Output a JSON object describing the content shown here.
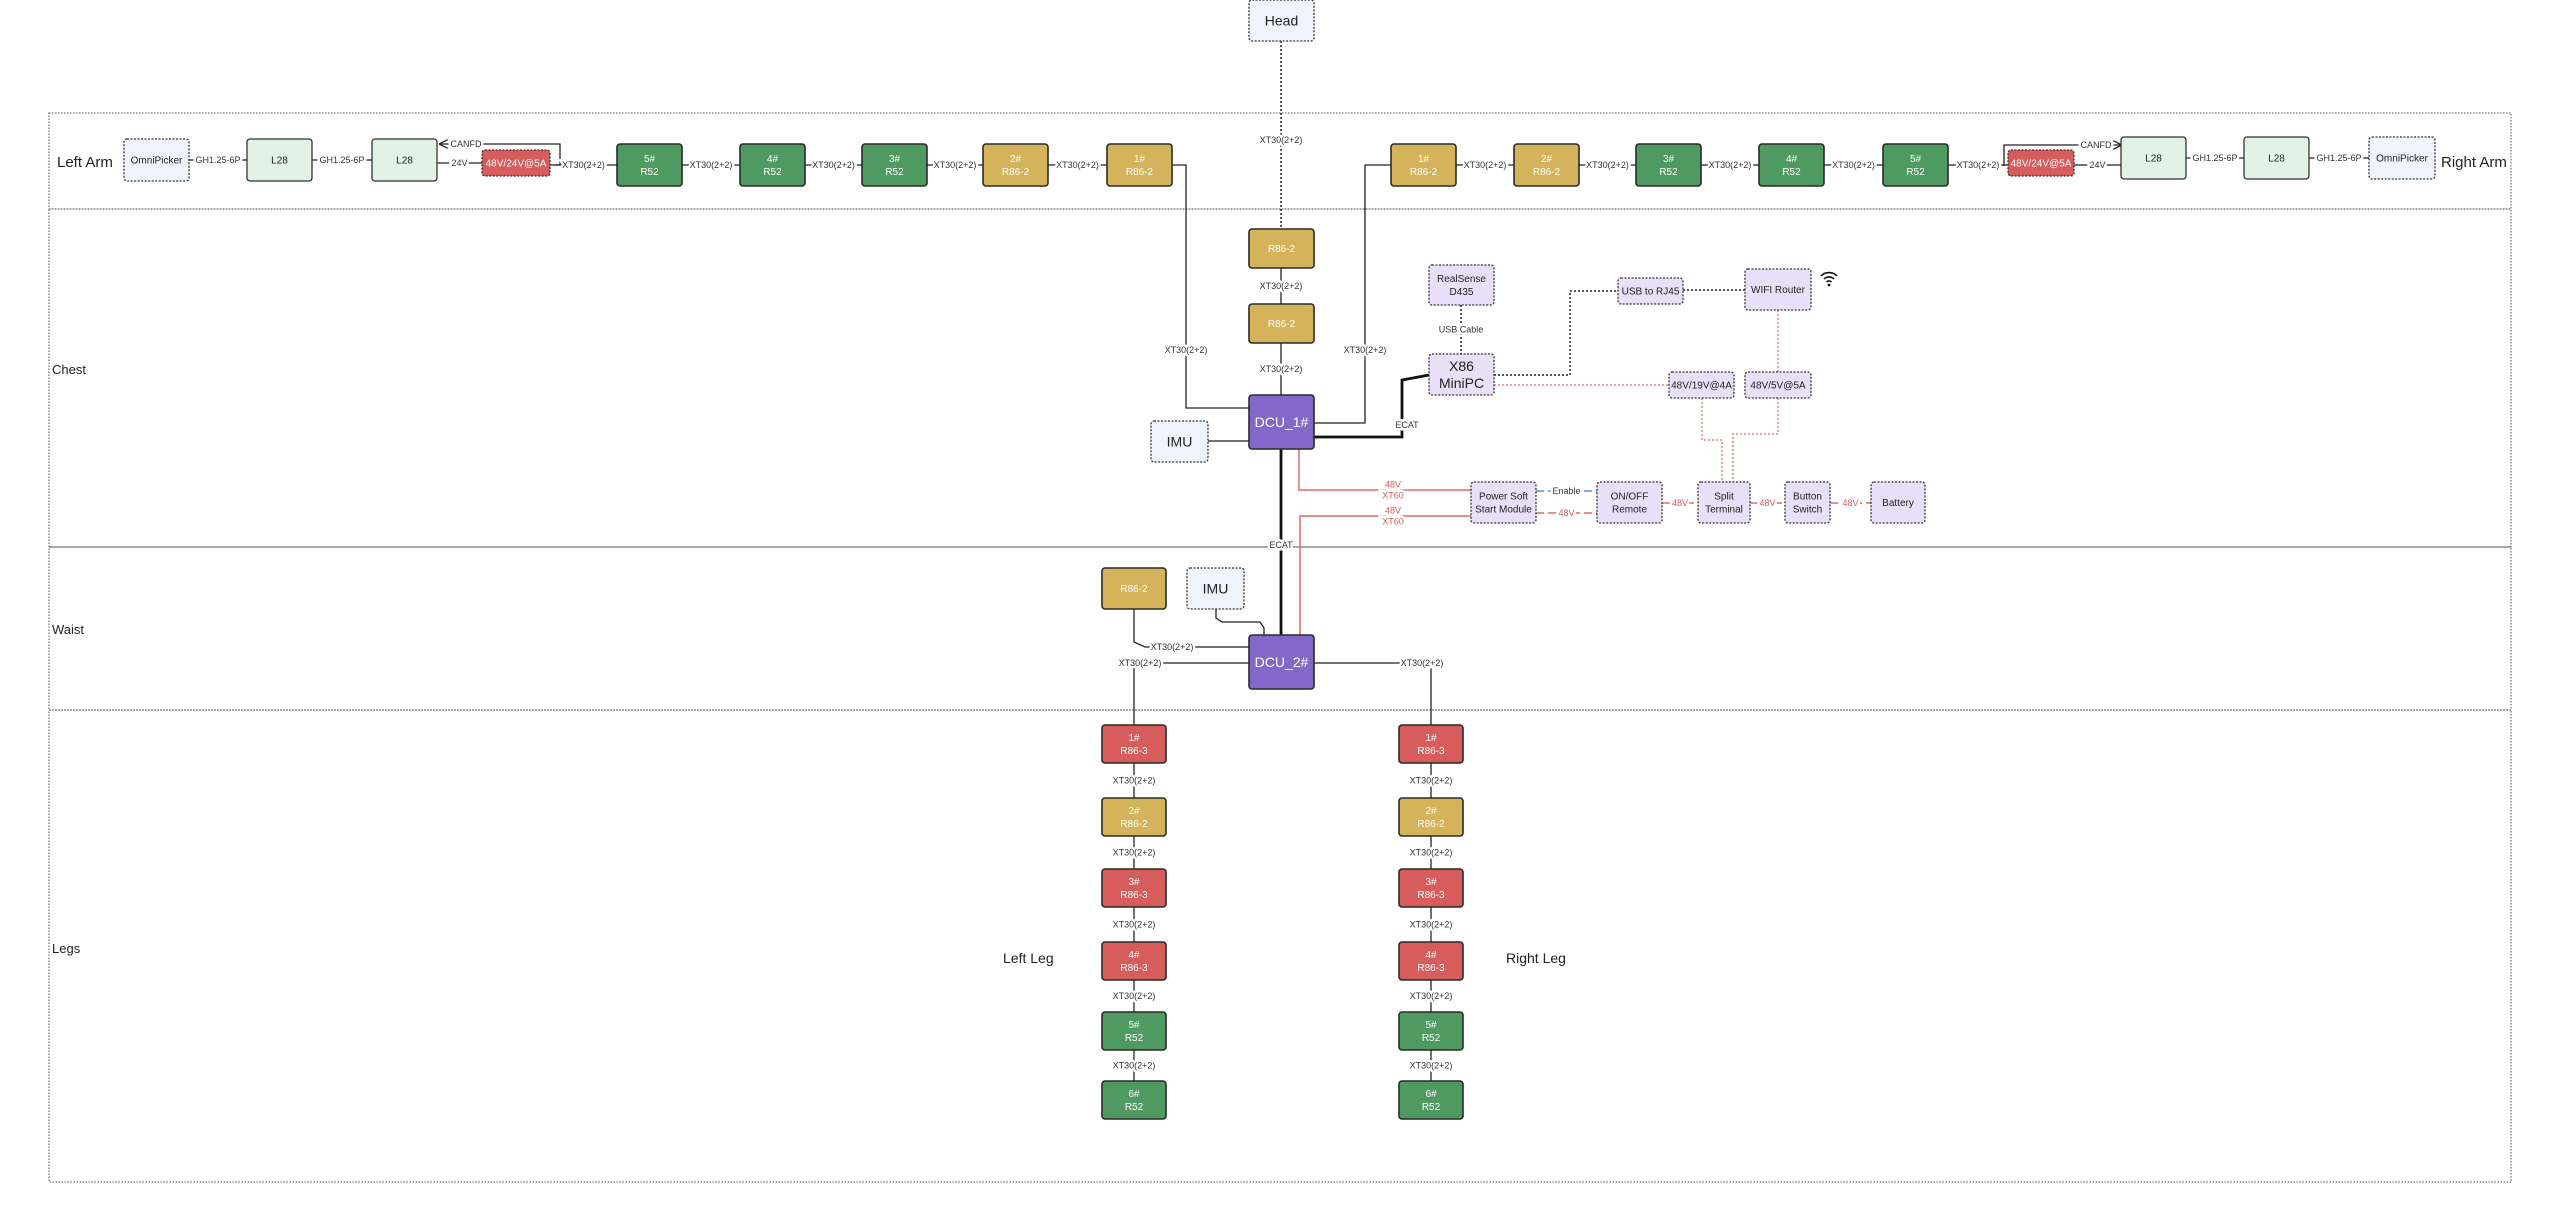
{
  "colors": {
    "motor_r52": "#4e9a61",
    "motor_r86_2": "#d4b35a",
    "motor_r86_3": "#d75c5c",
    "psu": "#d75c5c",
    "gripper_motor": "#e0f3e4",
    "sensor": "#eef3fc",
    "controller": "#8468c9",
    "electronics": "#e8e0f8",
    "power_line": "#e06c6c",
    "enable_line": "#5b8fd6"
  },
  "sections": [
    {
      "id": "arms",
      "label_left": "Left Arm",
      "label_right": "Right Arm"
    },
    {
      "id": "chest",
      "label": "Chest"
    },
    {
      "id": "waist",
      "label": "Waist"
    },
    {
      "id": "legs",
      "label": "Legs",
      "left_label": "Left Leg",
      "right_label": "Right Leg"
    }
  ],
  "nodes": {
    "head": {
      "lines": [
        "Head"
      ],
      "kind": "sensor"
    },
    "la_omni": {
      "lines": [
        "OmniPicker"
      ],
      "kind": "sensor"
    },
    "la_l28a": {
      "lines": [
        "L28"
      ],
      "kind": "gripper_motor"
    },
    "la_l28b": {
      "lines": [
        "L28"
      ],
      "kind": "gripper_motor"
    },
    "la_psu": {
      "lines": [
        "48V/24V@5A"
      ],
      "kind": "psu"
    },
    "la_5": {
      "lines": [
        "5#",
        "R52"
      ],
      "kind": "motor_r52"
    },
    "la_4": {
      "lines": [
        "4#",
        "R52"
      ],
      "kind": "motor_r52"
    },
    "la_3": {
      "lines": [
        "3#",
        "R52"
      ],
      "kind": "motor_r52"
    },
    "la_2": {
      "lines": [
        "2#",
        "R86-2"
      ],
      "kind": "motor_r86_2"
    },
    "la_1": {
      "lines": [
        "1#",
        "R86-2"
      ],
      "kind": "motor_r86_2"
    },
    "ra_1": {
      "lines": [
        "1#",
        "R86-2"
      ],
      "kind": "motor_r86_2"
    },
    "ra_2": {
      "lines": [
        "2#",
        "R86-2"
      ],
      "kind": "motor_r86_2"
    },
    "ra_3": {
      "lines": [
        "3#",
        "R52"
      ],
      "kind": "motor_r52"
    },
    "ra_4": {
      "lines": [
        "4#",
        "R52"
      ],
      "kind": "motor_r52"
    },
    "ra_5": {
      "lines": [
        "5#",
        "R52"
      ],
      "kind": "motor_r52"
    },
    "ra_psu": {
      "lines": [
        "48V/24V@5A"
      ],
      "kind": "psu"
    },
    "ra_l28a": {
      "lines": [
        "L28"
      ],
      "kind": "gripper_motor"
    },
    "ra_l28b": {
      "lines": [
        "L28"
      ],
      "kind": "gripper_motor"
    },
    "ra_omni": {
      "lines": [
        "OmniPicker"
      ],
      "kind": "sensor"
    },
    "ch_m1": {
      "lines": [
        "R86-2"
      ],
      "kind": "motor_r86_2"
    },
    "ch_m2": {
      "lines": [
        "R86-2"
      ],
      "kind": "motor_r86_2"
    },
    "dcu1": {
      "lines": [
        "DCU_1#"
      ],
      "kind": "controller"
    },
    "imu1": {
      "lines": [
        "IMU"
      ],
      "kind": "sensor"
    },
    "realsense": {
      "lines": [
        "RealSense",
        "D435"
      ],
      "kind": "electronics"
    },
    "minipc": {
      "lines": [
        "X86",
        "MiniPC"
      ],
      "kind": "electronics"
    },
    "usb_rj45": {
      "lines": [
        "USB to RJ45"
      ],
      "kind": "electronics"
    },
    "router": {
      "lines": [
        "WIFI Router"
      ],
      "kind": "electronics"
    },
    "dc19": {
      "lines": [
        "48V/19V@4A"
      ],
      "kind": "electronics"
    },
    "dc5": {
      "lines": [
        "48V/5V@5A"
      ],
      "kind": "electronics"
    },
    "softstart": {
      "lines": [
        "Power Soft",
        "Start Module"
      ],
      "kind": "electronics"
    },
    "onoff": {
      "lines": [
        "ON/OFF",
        "Remote"
      ],
      "kind": "electronics"
    },
    "split": {
      "lines": [
        "Split",
        "Terminal"
      ],
      "kind": "electronics"
    },
    "button": {
      "lines": [
        "Button",
        "Switch"
      ],
      "kind": "electronics"
    },
    "battery": {
      "lines": [
        "Battery"
      ],
      "kind": "electronics"
    },
    "wa_m": {
      "lines": [
        "R86-2"
      ],
      "kind": "motor_r86_2"
    },
    "imu2": {
      "lines": [
        "IMU"
      ],
      "kind": "sensor"
    },
    "dcu2": {
      "lines": [
        "DCU_2#"
      ],
      "kind": "controller"
    },
    "ll_1": {
      "lines": [
        "1#",
        "R86-3"
      ],
      "kind": "motor_r86_3"
    },
    "ll_2": {
      "lines": [
        "2#",
        "R86-2"
      ],
      "kind": "motor_r86_2"
    },
    "ll_3": {
      "lines": [
        "3#",
        "R86-3"
      ],
      "kind": "motor_r86_3"
    },
    "ll_4": {
      "lines": [
        "4#",
        "R86-3"
      ],
      "kind": "motor_r86_3"
    },
    "ll_5": {
      "lines": [
        "5#",
        "R52"
      ],
      "kind": "motor_r52"
    },
    "ll_6": {
      "lines": [
        "6#",
        "R52"
      ],
      "kind": "motor_r52"
    },
    "rl_1": {
      "lines": [
        "1#",
        "R86-3"
      ],
      "kind": "motor_r86_3"
    },
    "rl_2": {
      "lines": [
        "2#",
        "R86-2"
      ],
      "kind": "motor_r86_2"
    },
    "rl_3": {
      "lines": [
        "3#",
        "R86-3"
      ],
      "kind": "motor_r86_3"
    },
    "rl_4": {
      "lines": [
        "4#",
        "R86-3"
      ],
      "kind": "motor_r86_3"
    },
    "rl_5": {
      "lines": [
        "5#",
        "R52"
      ],
      "kind": "motor_r52"
    },
    "rl_6": {
      "lines": [
        "6#",
        "R52"
      ],
      "kind": "motor_r52"
    }
  },
  "edges": [
    {
      "id": "e_la1",
      "label": [
        "GH1.25-6P"
      ],
      "style": "solid"
    },
    {
      "id": "e_la2",
      "label": [
        "GH1.25-6P"
      ],
      "style": "solid"
    },
    {
      "id": "e_la3",
      "label": [
        "24V"
      ],
      "style": "solid"
    },
    {
      "id": "e_la_can",
      "label": [
        "CANFD"
      ],
      "style": "solid-arrow"
    },
    {
      "id": "e_la4",
      "label": [
        "XT30(2+2)"
      ],
      "style": "solid"
    },
    {
      "id": "e_la5",
      "label": [
        "XT30(2+2)"
      ],
      "style": "solid"
    },
    {
      "id": "e_la6",
      "label": [
        "XT30(2+2)"
      ],
      "style": "solid"
    },
    {
      "id": "e_la7",
      "label": [
        "XT30(2+2)"
      ],
      "style": "solid"
    },
    {
      "id": "e_la8",
      "label": [
        "XT30(2+2)"
      ],
      "style": "solid"
    },
    {
      "id": "e_la_dcu",
      "label": [
        "XT30(2+2)"
      ],
      "style": "solid"
    },
    {
      "id": "e_ra_dcu",
      "label": [
        "XT30(2+2)"
      ],
      "style": "solid"
    },
    {
      "id": "e_ra1",
      "label": [
        "XT30(2+2)"
      ],
      "style": "solid"
    },
    {
      "id": "e_ra2",
      "label": [
        "XT30(2+2)"
      ],
      "style": "solid"
    },
    {
      "id": "e_ra3",
      "label": [
        "XT30(2+2)"
      ],
      "style": "solid"
    },
    {
      "id": "e_ra4",
      "label": [
        "XT30(2+2)"
      ],
      "style": "solid"
    },
    {
      "id": "e_ra5",
      "label": [
        "XT30(2+2)"
      ],
      "style": "solid"
    },
    {
      "id": "e_ra_can",
      "label": [
        "CANFD"
      ],
      "style": "solid-arrow"
    },
    {
      "id": "e_ra6",
      "label": [
        "24V"
      ],
      "style": "solid"
    },
    {
      "id": "e_ra7",
      "label": [
        "GH1.25-6P"
      ],
      "style": "solid"
    },
    {
      "id": "e_ra8",
      "label": [
        "GH1.25-6P"
      ],
      "style": "solid"
    },
    {
      "id": "e_head",
      "label": [
        "XT30(2+2)"
      ],
      "style": "dotted"
    },
    {
      "id": "e_ch1",
      "label": [
        "XT30(2+2)"
      ],
      "style": "solid"
    },
    {
      "id": "e_ch2",
      "label": [
        "XT30(2+2)"
      ],
      "style": "solid"
    },
    {
      "id": "e_imu1",
      "label": [],
      "style": "solid"
    },
    {
      "id": "e_ecat_pc",
      "label": [
        "ECAT"
      ],
      "style": "thick"
    },
    {
      "id": "e_usbcable",
      "label": [
        "USB Cable"
      ],
      "style": "dotted"
    },
    {
      "id": "e_pc_rj45",
      "label": [],
      "style": "dotted"
    },
    {
      "id": "e_rj45_router",
      "label": [],
      "style": "dotted"
    },
    {
      "id": "e_pc_19",
      "label": [],
      "style": "red-dotted"
    },
    {
      "id": "e_router_5",
      "label": [],
      "style": "red-dotted"
    },
    {
      "id": "e_19_split",
      "label": [],
      "style": "red-dotted"
    },
    {
      "id": "e_5_split",
      "label": [],
      "style": "red-dotted"
    },
    {
      "id": "e_dcu1_soft",
      "label": [
        "48V",
        "XT60"
      ],
      "style": "red"
    },
    {
      "id": "e_dcu2_soft",
      "label": [
        "48V",
        "XT60"
      ],
      "style": "red"
    },
    {
      "id": "e_enable",
      "label": [
        "Enable"
      ],
      "style": "blue-dashed"
    },
    {
      "id": "e_soft_onoff",
      "label": [
        "48V"
      ],
      "style": "red-dashed"
    },
    {
      "id": "e_onoff_split",
      "label": [
        "48V"
      ],
      "style": "red-dashed"
    },
    {
      "id": "e_split_button",
      "label": [
        "48V"
      ],
      "style": "red-dashed"
    },
    {
      "id": "e_button_batt",
      "label": [
        "48V"
      ],
      "style": "red-dashed"
    },
    {
      "id": "e_ecat_dcu",
      "label": [
        "ECAT"
      ],
      "style": "thick"
    },
    {
      "id": "e_wa_m",
      "label": [
        "XT30(2+2)"
      ],
      "style": "solid"
    },
    {
      "id": "e_imu2",
      "label": [],
      "style": "solid"
    },
    {
      "id": "e_dcu2_ll",
      "label": [
        "XT30(2+2)"
      ],
      "style": "solid"
    },
    {
      "id": "e_dcu2_rl",
      "label": [
        "XT30(2+2)"
      ],
      "style": "solid"
    },
    {
      "id": "e_ll1",
      "label": [
        "XT30(2+2)"
      ],
      "style": "solid"
    },
    {
      "id": "e_ll2",
      "label": [
        "XT30(2+2)"
      ],
      "style": "solid"
    },
    {
      "id": "e_ll3",
      "label": [
        "XT30(2+2)"
      ],
      "style": "solid"
    },
    {
      "id": "e_ll4",
      "label": [
        "XT30(2+2)"
      ],
      "style": "solid"
    },
    {
      "id": "e_ll5",
      "label": [
        "XT30(2+2)"
      ],
      "style": "solid"
    },
    {
      "id": "e_rl1",
      "label": [
        "XT30(2+2)"
      ],
      "style": "solid"
    },
    {
      "id": "e_rl2",
      "label": [
        "XT30(2+2)"
      ],
      "style": "solid"
    },
    {
      "id": "e_rl3",
      "label": [
        "XT30(2+2)"
      ],
      "style": "solid"
    },
    {
      "id": "e_rl4",
      "label": [
        "XT30(2+2)"
      ],
      "style": "solid"
    },
    {
      "id": "e_rl5",
      "label": [
        "XT30(2+2)"
      ],
      "style": "solid"
    }
  ],
  "icons": {
    "router_signal": "wifi-icon"
  }
}
